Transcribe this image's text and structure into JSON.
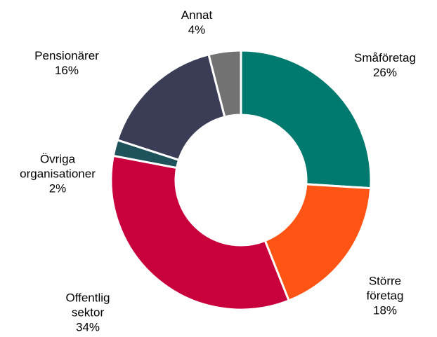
{
  "chart_data": {
    "type": "donut",
    "categories": [
      "Småföretag",
      "Större företag",
      "Offentlig sektor",
      "Övriga organisationer",
      "Pensionärer",
      "Annat"
    ],
    "values": [
      26,
      18,
      34,
      2,
      16,
      4
    ],
    "value_labels": [
      "26%",
      "18%",
      "34%",
      "2%",
      "16%",
      "4%"
    ],
    "colors": [
      "#007a6e",
      "#ff5414",
      "#c8003c",
      "#1f535b",
      "#3b3d56",
      "#727272"
    ]
  }
}
